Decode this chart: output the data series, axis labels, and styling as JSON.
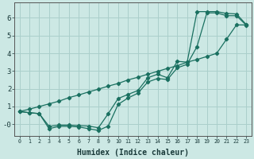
{
  "xlabel": "Humidex (Indice chaleur)",
  "background_color": "#cce8e4",
  "grid_color": "#aacfcb",
  "line_color": "#1a7060",
  "xlim": [
    -0.5,
    23.5
  ],
  "ylim": [
    -0.65,
    6.85
  ],
  "xticks": [
    0,
    1,
    2,
    3,
    4,
    5,
    6,
    7,
    8,
    9,
    10,
    11,
    12,
    13,
    14,
    15,
    16,
    17,
    18,
    19,
    20,
    21,
    22,
    23
  ],
  "yticks": [
    0,
    1,
    2,
    3,
    4,
    5,
    6
  ],
  "ytick_labels": [
    "-0",
    "1",
    "2",
    "3",
    "4",
    "5",
    "6"
  ],
  "line_straight_y": [
    0.72,
    0.85,
    1.0,
    1.15,
    1.3,
    1.5,
    1.65,
    1.82,
    1.98,
    2.15,
    2.3,
    2.5,
    2.65,
    2.82,
    2.98,
    3.15,
    3.3,
    3.5,
    3.65,
    3.82,
    4.0,
    4.8,
    5.6,
    5.6
  ],
  "line_upper_y": [
    0.72,
    0.65,
    0.6,
    -0.12,
    -0.05,
    -0.05,
    -0.08,
    -0.1,
    -0.2,
    0.6,
    1.45,
    1.68,
    1.9,
    2.62,
    2.82,
    2.62,
    3.55,
    3.5,
    6.35,
    6.35,
    6.35,
    6.25,
    6.22,
    5.62
  ],
  "line_lower_y": [
    0.72,
    0.65,
    0.6,
    -0.25,
    -0.12,
    -0.12,
    -0.15,
    -0.25,
    -0.35,
    -0.1,
    1.12,
    1.48,
    1.75,
    2.38,
    2.58,
    2.52,
    3.18,
    3.38,
    4.38,
    6.28,
    6.28,
    6.12,
    6.12,
    5.58
  ]
}
